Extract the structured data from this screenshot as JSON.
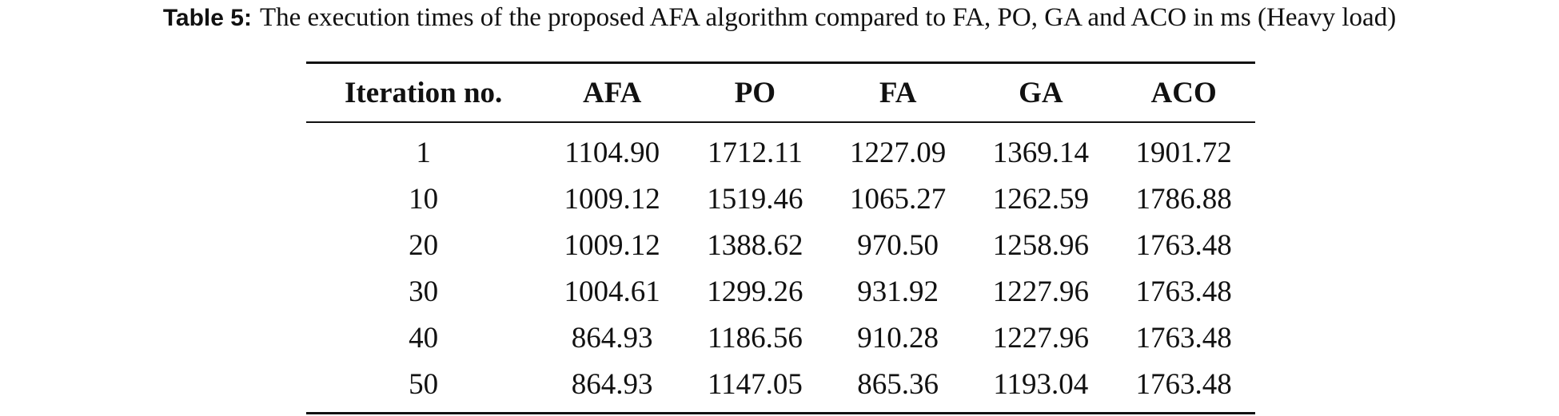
{
  "caption": {
    "label": "Table 5:",
    "text": "The execution times of the proposed AFA algorithm compared to FA, PO, GA and ACO in ms (Heavy load)"
  },
  "table": {
    "header": [
      "Iteration no.",
      "AFA",
      "PO",
      "FA",
      "GA",
      "ACO"
    ],
    "rows": [
      [
        "1",
        "1104.90",
        "1712.11",
        "1227.09",
        "1369.14",
        "1901.72"
      ],
      [
        "10",
        "1009.12",
        "1519.46",
        "1065.27",
        "1262.59",
        "1786.88"
      ],
      [
        "20",
        "1009.12",
        "1388.62",
        "970.50",
        "1258.96",
        "1763.48"
      ],
      [
        "30",
        "1004.61",
        "1299.26",
        "931.92",
        "1227.96",
        "1763.48"
      ],
      [
        "40",
        "864.93",
        "1186.56",
        "910.28",
        "1227.96",
        "1763.48"
      ],
      [
        "50",
        "864.93",
        "1147.05",
        "865.36",
        "1193.04",
        "1763.48"
      ]
    ]
  }
}
